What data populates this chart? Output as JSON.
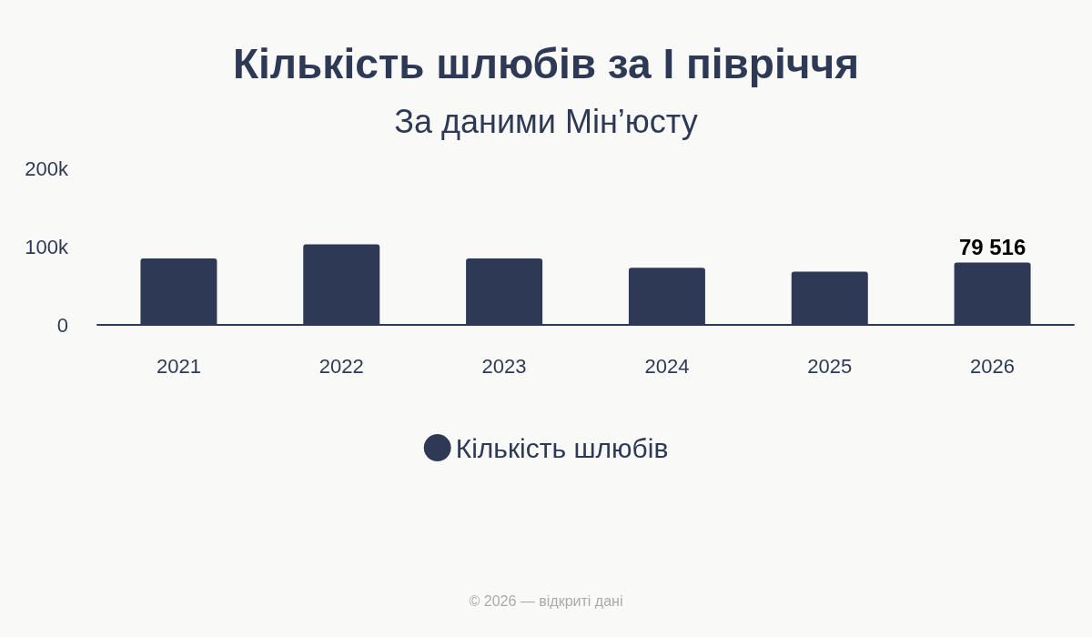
{
  "chart_data": {
    "type": "bar",
    "title": "Кількість шлюбів за I півріччя",
    "subtitle": "За даними Мін’юсту",
    "categories": [
      "2021",
      "2022",
      "2023",
      "2024",
      "2025",
      "2026"
    ],
    "series": [
      {
        "name": "Кількість шлюбів",
        "color": "#2e3a55",
        "values": [
          85000,
          103000,
          85000,
          73000,
          68000,
          79516
        ],
        "value_labels": [
          null,
          null,
          null,
          null,
          null,
          "79 516"
        ]
      }
    ],
    "ylim": [
      0,
      200000
    ],
    "yticks": [
      {
        "value": 0,
        "label": "0"
      },
      {
        "value": 100000,
        "label": "100k"
      },
      {
        "value": 200000,
        "label": "200k"
      }
    ],
    "grid": false,
    "legend": "bottom",
    "annotations": [
      "© 2026 — відкриті дані"
    ]
  }
}
